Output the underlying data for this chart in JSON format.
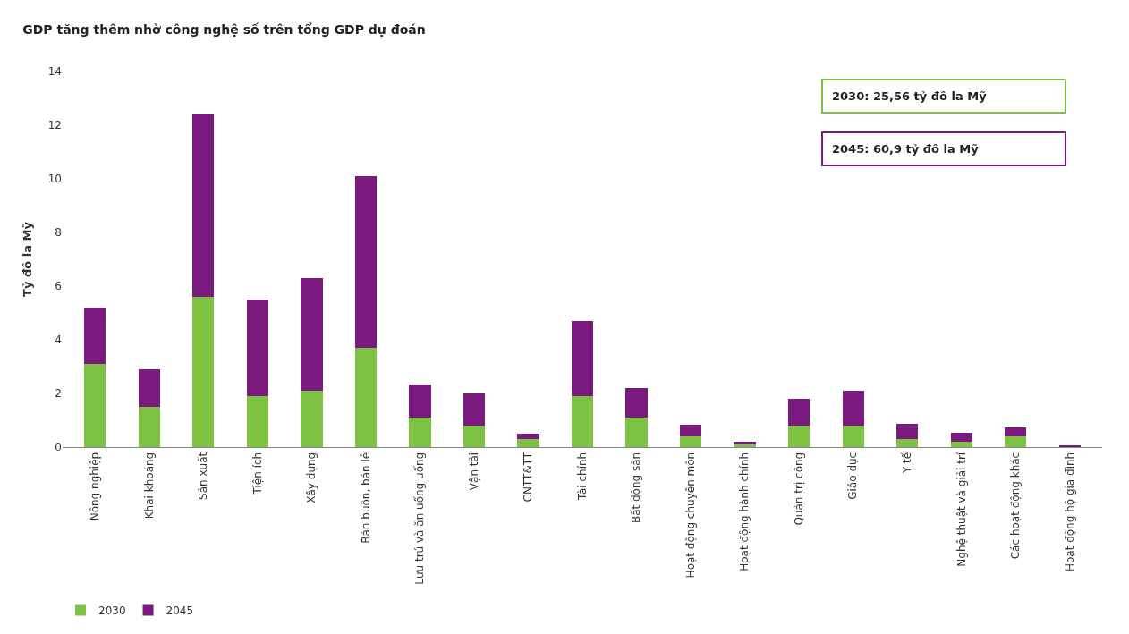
{
  "chart_data": {
    "type": "bar",
    "title": "GDP tăng thêm nhờ công nghệ số trên tổng GDP dự đoán",
    "ylabel": "Tỷ đô la Mỹ",
    "categories": [
      "Nông nghiệp",
      "Khai khoáng",
      "Sản xuất",
      "Tiện ích",
      "Xây dựng",
      "Bán buôn, bán lẻ",
      "Lưu trú và ăn uống uống",
      "Vận tải",
      "CNTT&TT",
      "Tài chính",
      "Bất động sản",
      "Hoạt động chuyên môn",
      "Hoạt động hành chính",
      "Quản trị công",
      "Giáo dục",
      "Y tế",
      "Nghệ thuật và giải trí",
      "Các hoạt động khác",
      "Hoạt động hộ gia đình"
    ],
    "stacked": true,
    "series": [
      {
        "name": "2030",
        "color": "#7dc242",
        "values": [
          3.1,
          1.5,
          5.6,
          1.9,
          2.1,
          3.7,
          1.1,
          0.8,
          0.3,
          1.9,
          1.1,
          0.4,
          0.1,
          0.8,
          0.8,
          0.3,
          0.2,
          0.4,
          0.03
        ]
      },
      {
        "name": "2045",
        "color": "#7b1a7e",
        "values": [
          2.1,
          1.4,
          6.8,
          3.6,
          4.2,
          6.4,
          1.25,
          1.2,
          0.2,
          2.8,
          1.1,
          0.43,
          0.1,
          1.0,
          1.3,
          0.57,
          0.33,
          0.32,
          0.02
        ]
      }
    ],
    "ylim": [
      0,
      14
    ],
    "yticks": [
      0,
      2,
      4,
      6,
      8,
      10,
      12,
      14
    ],
    "legend": "bottom left",
    "annotations": [
      "2030: 25,56 tỷ đô la Mỹ",
      "2045: 60,9 tỷ đô la Mỹ"
    ]
  }
}
